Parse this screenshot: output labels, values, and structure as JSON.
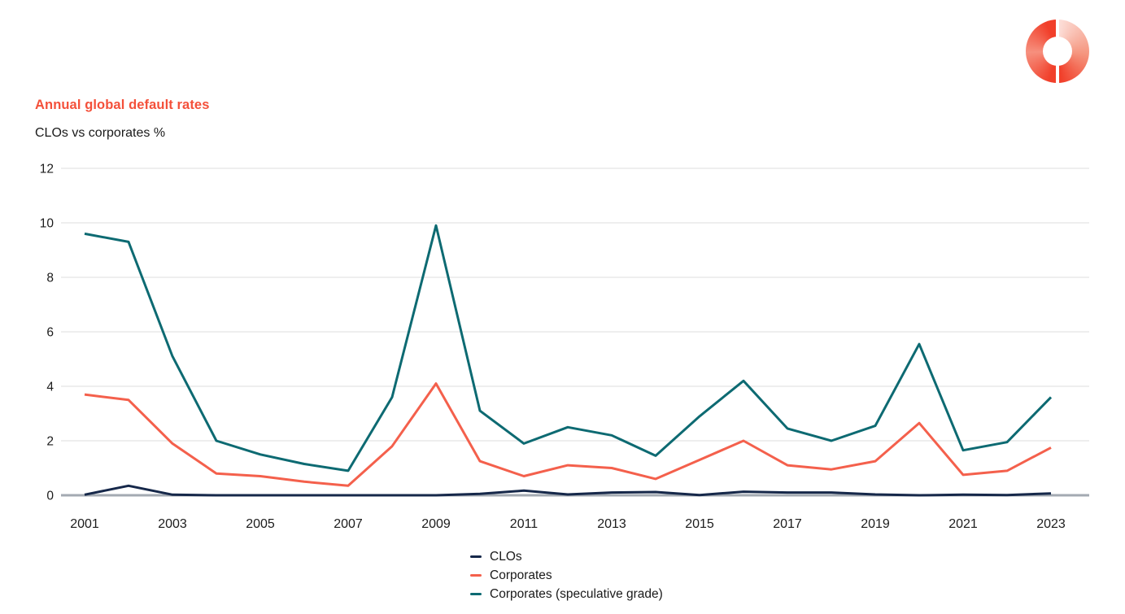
{
  "header": {
    "title": "Annual global default rates",
    "subtitle": "CLOs vs corporates %",
    "title_color": "#f4503a"
  },
  "logo": {
    "name": "donut-logo",
    "primary_color": "#f1402b",
    "light_color": "#fcded8"
  },
  "chart_data": {
    "type": "line",
    "x": [
      2001,
      2002,
      2003,
      2004,
      2005,
      2006,
      2007,
      2008,
      2009,
      2010,
      2011,
      2012,
      2013,
      2014,
      2015,
      2016,
      2017,
      2018,
      2019,
      2020,
      2021,
      2022,
      2023
    ],
    "xtick_labels": [
      "2001",
      "2003",
      "2005",
      "2007",
      "2009",
      "2011",
      "2013",
      "2015",
      "2017",
      "2019",
      "2021",
      "2023"
    ],
    "yticks": [
      0,
      2,
      4,
      6,
      8,
      10,
      12
    ],
    "ylim": [
      0,
      12
    ],
    "grid": "horizontal",
    "legend_position": "bottom-left",
    "gridline_color": "#dedede",
    "zero_axis_color": "#a3aab2",
    "tick_label_color": "#1c1c1c",
    "series": [
      {
        "name": "CLOs",
        "color": "#16284a",
        "values": [
          0.02,
          0.35,
          0.02,
          0.0,
          0.0,
          0.0,
          0.0,
          0.0,
          0.0,
          0.05,
          0.17,
          0.03,
          0.1,
          0.12,
          0.01,
          0.13,
          0.1,
          0.1,
          0.03,
          0.0,
          0.02,
          0.01,
          0.07
        ]
      },
      {
        "name": "Corporates",
        "color": "#f4604c",
        "values": [
          3.7,
          3.5,
          1.9,
          0.8,
          0.7,
          0.5,
          0.35,
          1.8,
          4.1,
          1.25,
          0.7,
          1.1,
          1.0,
          0.6,
          1.3,
          2.0,
          1.1,
          0.95,
          1.25,
          2.65,
          0.75,
          0.9,
          1.75
        ]
      },
      {
        "name": "Corporates (speculative grade)",
        "color": "#0d6a72",
        "values": [
          9.6,
          9.3,
          5.1,
          2.0,
          1.5,
          1.15,
          0.9,
          3.6,
          9.9,
          3.1,
          1.9,
          2.5,
          2.2,
          1.45,
          2.9,
          4.2,
          2.45,
          2.0,
          2.55,
          5.55,
          1.65,
          1.95,
          3.6
        ]
      }
    ]
  }
}
